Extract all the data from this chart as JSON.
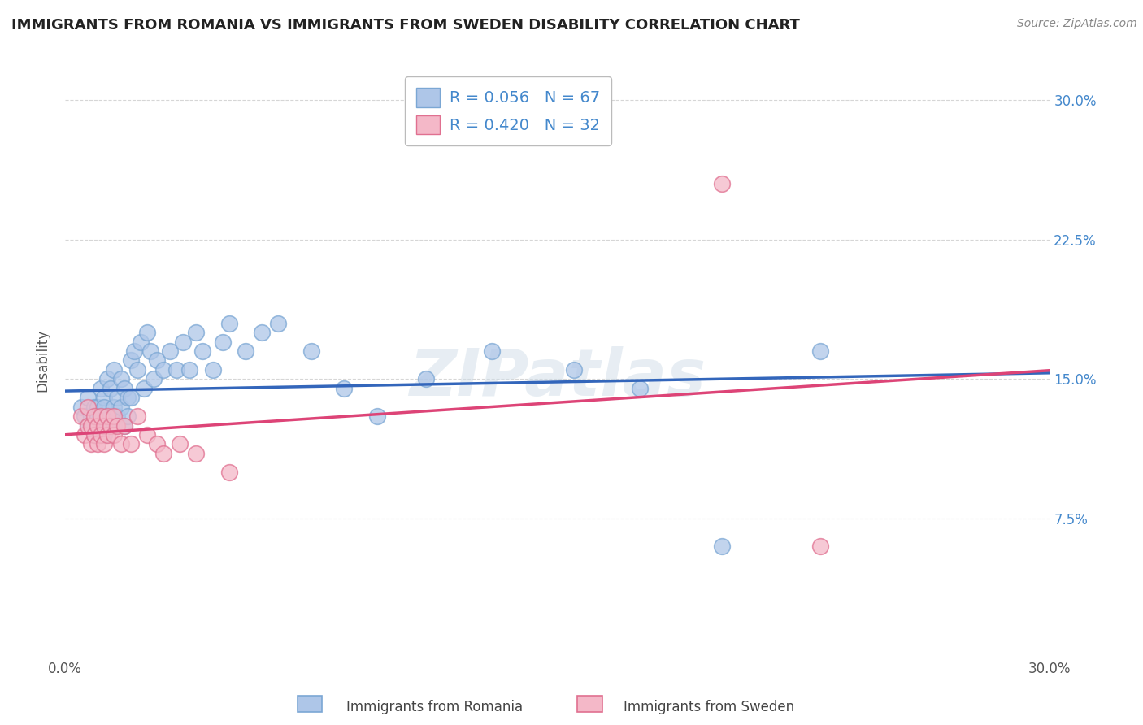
{
  "title": "IMMIGRANTS FROM ROMANIA VS IMMIGRANTS FROM SWEDEN DISABILITY CORRELATION CHART",
  "source_text": "Source: ZipAtlas.com",
  "ylabel": "Disability",
  "xlim": [
    0.0,
    0.3
  ],
  "ylim": [
    0.0,
    0.32
  ],
  "ytick_positions": [
    0.075,
    0.15,
    0.225,
    0.3
  ],
  "ytick_labels": [
    "7.5%",
    "15.0%",
    "22.5%",
    "30.0%"
  ],
  "romania_color": "#aec6e8",
  "romania_edge": "#7ba7d4",
  "sweden_color": "#f4b8c8",
  "sweden_edge": "#e07090",
  "romania_R": 0.056,
  "romania_N": 67,
  "sweden_R": 0.42,
  "sweden_N": 32,
  "legend_romania": "Immigrants from Romania",
  "legend_sweden": "Immigrants from Sweden",
  "romania_line_color": "#3366bb",
  "sweden_line_color": "#dd4477",
  "background_color": "#ffffff",
  "romania_scatter_x": [
    0.005,
    0.006,
    0.007,
    0.007,
    0.008,
    0.008,
    0.009,
    0.009,
    0.009,
    0.01,
    0.01,
    0.01,
    0.011,
    0.011,
    0.011,
    0.012,
    0.012,
    0.012,
    0.013,
    0.013,
    0.013,
    0.014,
    0.014,
    0.014,
    0.015,
    0.015,
    0.015,
    0.016,
    0.016,
    0.017,
    0.017,
    0.018,
    0.018,
    0.019,
    0.019,
    0.02,
    0.02,
    0.021,
    0.022,
    0.023,
    0.024,
    0.025,
    0.026,
    0.027,
    0.028,
    0.03,
    0.032,
    0.034,
    0.036,
    0.038,
    0.04,
    0.042,
    0.045,
    0.048,
    0.05,
    0.055,
    0.06,
    0.065,
    0.075,
    0.085,
    0.095,
    0.11,
    0.13,
    0.155,
    0.175,
    0.2,
    0.23
  ],
  "romania_scatter_y": [
    0.135,
    0.13,
    0.125,
    0.14,
    0.13,
    0.125,
    0.13,
    0.135,
    0.12,
    0.135,
    0.125,
    0.13,
    0.145,
    0.125,
    0.13,
    0.14,
    0.12,
    0.135,
    0.15,
    0.125,
    0.13,
    0.145,
    0.13,
    0.125,
    0.155,
    0.135,
    0.125,
    0.14,
    0.13,
    0.15,
    0.135,
    0.145,
    0.125,
    0.14,
    0.13,
    0.16,
    0.14,
    0.165,
    0.155,
    0.17,
    0.145,
    0.175,
    0.165,
    0.15,
    0.16,
    0.155,
    0.165,
    0.155,
    0.17,
    0.155,
    0.175,
    0.165,
    0.155,
    0.17,
    0.18,
    0.165,
    0.175,
    0.18,
    0.165,
    0.145,
    0.13,
    0.15,
    0.165,
    0.155,
    0.145,
    0.06,
    0.165
  ],
  "sweden_scatter_x": [
    0.005,
    0.006,
    0.007,
    0.007,
    0.008,
    0.008,
    0.009,
    0.009,
    0.01,
    0.01,
    0.011,
    0.011,
    0.012,
    0.012,
    0.013,
    0.013,
    0.014,
    0.015,
    0.015,
    0.016,
    0.017,
    0.018,
    0.02,
    0.022,
    0.025,
    0.028,
    0.03,
    0.035,
    0.04,
    0.05,
    0.2,
    0.23
  ],
  "sweden_scatter_y": [
    0.13,
    0.12,
    0.135,
    0.125,
    0.125,
    0.115,
    0.13,
    0.12,
    0.125,
    0.115,
    0.13,
    0.12,
    0.125,
    0.115,
    0.13,
    0.12,
    0.125,
    0.13,
    0.12,
    0.125,
    0.115,
    0.125,
    0.115,
    0.13,
    0.12,
    0.115,
    0.11,
    0.115,
    0.11,
    0.1,
    0.255,
    0.06
  ],
  "watermark": "ZIPatlas"
}
